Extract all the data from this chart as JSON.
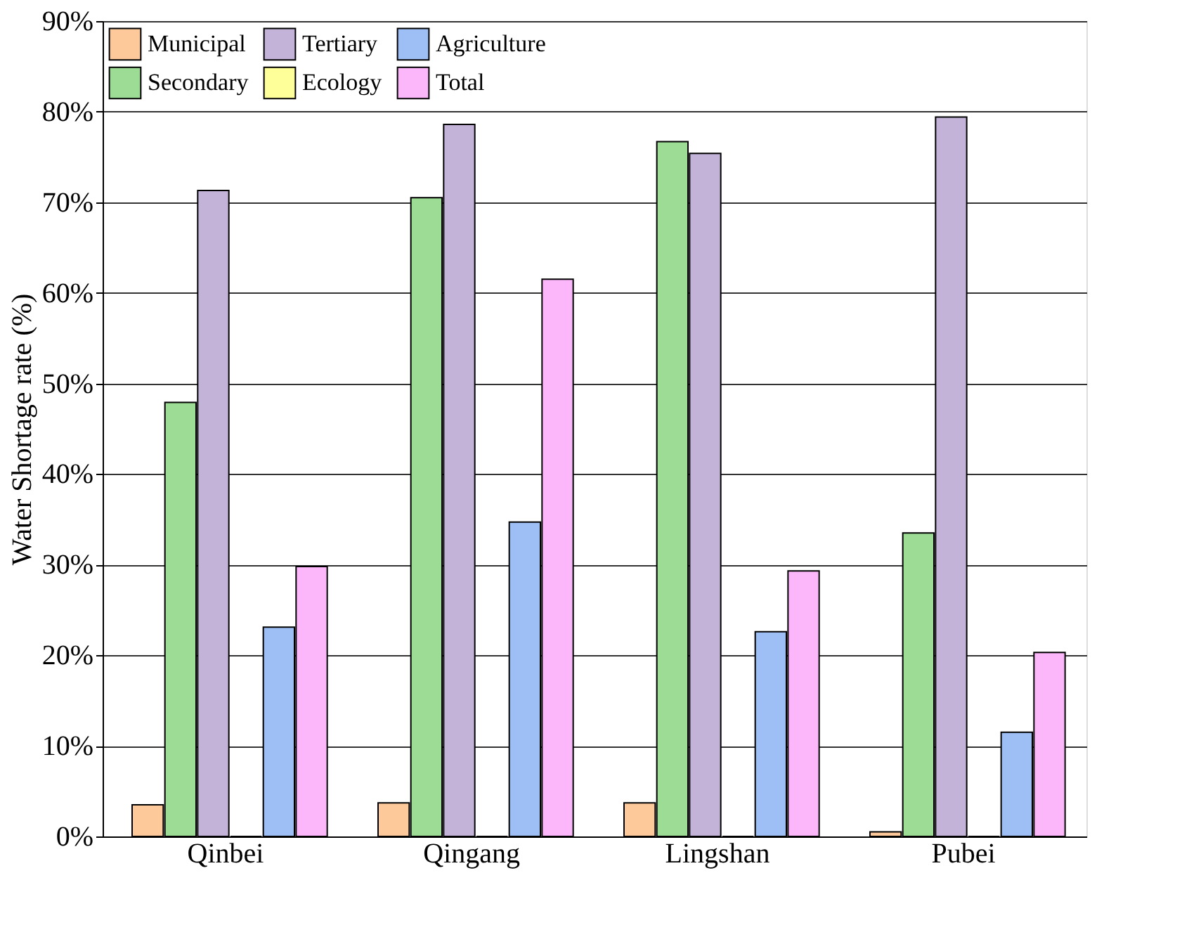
{
  "chart_data": {
    "type": "bar",
    "ylabel": "Water Shortage rate (%)",
    "categories": [
      "Qinbei",
      "Qingang",
      "Lingshan",
      "Pubei"
    ],
    "series": [
      {
        "name": "Municipal",
        "color": "#fdc89a",
        "values": [
          3.5,
          3.7,
          3.7,
          0.5
        ]
      },
      {
        "name": "Secondary",
        "color": "#9ddc95",
        "values": [
          47.9,
          70.5,
          76.7,
          33.5
        ]
      },
      {
        "name": "Tertiary",
        "color": "#c3b3d9",
        "values": [
          71.3,
          78.6,
          75.4,
          79.4
        ]
      },
      {
        "name": "Ecology",
        "color": "#ffff99",
        "values": [
          0,
          0,
          0,
          0
        ]
      },
      {
        "name": "Agriculture",
        "color": "#9dbff5",
        "values": [
          23.1,
          34.7,
          22.6,
          11.5
        ]
      },
      {
        "name": "Total",
        "color": "#fcb7fb",
        "values": [
          29.8,
          61.5,
          29.3,
          20.3
        ]
      }
    ],
    "ylim": [
      0,
      90
    ],
    "yticks": [
      {
        "value": 0,
        "label": "0%"
      },
      {
        "value": 10,
        "label": "10%"
      },
      {
        "value": 20,
        "label": "20%"
      },
      {
        "value": 30,
        "label": "30%"
      },
      {
        "value": 40,
        "label": "40%"
      },
      {
        "value": 50,
        "label": "50%"
      },
      {
        "value": 60,
        "label": "60%"
      },
      {
        "value": 70,
        "label": "70%"
      },
      {
        "value": 80,
        "label": "80%"
      },
      {
        "value": 90,
        "label": "90%"
      }
    ],
    "grid": "y",
    "legend": "top left"
  }
}
